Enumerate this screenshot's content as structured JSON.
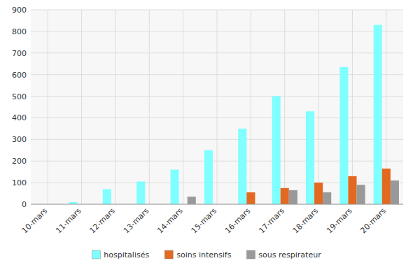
{
  "chart_data": {
    "type": "bar",
    "categories": [
      "10-mars",
      "11-mars",
      "12-mars",
      "13-mars",
      "14-mars",
      "15-mars",
      "16-mars",
      "17-mars",
      "18-mars",
      "19-mars",
      "20-mars"
    ],
    "series": [
      {
        "name": "hospitalisés",
        "color": "#7fffff",
        "values": [
          0,
          10,
          70,
          105,
          160,
          250,
          350,
          500,
          430,
          635,
          830
        ]
      },
      {
        "name": "soins intensifs",
        "color": "#e36820",
        "values": [
          0,
          0,
          0,
          0,
          0,
          0,
          55,
          75,
          100,
          130,
          165
        ]
      },
      {
        "name": "sous respirateur",
        "color": "#999999",
        "values": [
          0,
          0,
          0,
          0,
          35,
          0,
          0,
          65,
          55,
          90,
          110
        ]
      }
    ],
    "ylim": [
      0,
      900
    ],
    "yticks": [
      0,
      100,
      200,
      300,
      400,
      500,
      600,
      700,
      800,
      900
    ],
    "grid": true,
    "legend": "bottom"
  }
}
